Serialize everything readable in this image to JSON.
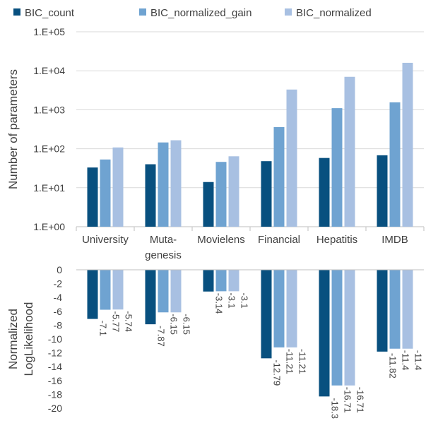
{
  "legend": [
    {
      "label": "BIC_count",
      "color": "#08507f"
    },
    {
      "label": "BIC_normalized_gain",
      "color": "#6fa3d1"
    },
    {
      "label": "BIC_normalized",
      "color": "#a8c0e2"
    }
  ],
  "chart_data": [
    {
      "type": "bar",
      "ylabel": "Number of parameters",
      "yscale": "log",
      "ylim": [
        1,
        100000
      ],
      "yticks": [
        "1.E+00",
        "1.E+01",
        "1.E+02",
        "1.E+03",
        "1.E+04",
        "1.E+05"
      ],
      "categories": [
        "University",
        "Muta-\ngenesis",
        "Movielens",
        "Financial",
        "Hepatitis",
        "IMDB"
      ],
      "grid": true,
      "legend_position": "top",
      "series": [
        {
          "name": "BIC_count",
          "values": [
            33,
            40,
            14,
            48,
            58,
            68
          ]
        },
        {
          "name": "BIC_normalized_gain",
          "values": [
            53,
            145,
            46,
            360,
            1100,
            1550
          ]
        },
        {
          "name": "BIC_normalized",
          "values": [
            108,
            165,
            64,
            3300,
            7000,
            16000
          ]
        }
      ]
    },
    {
      "type": "bar",
      "ylabel": "Normalized LogLikelihood",
      "ylim": [
        -20,
        0
      ],
      "yticks": [
        "0",
        "-2",
        "-4",
        "-6",
        "-8",
        "-10",
        "-12",
        "-14",
        "-16",
        "-18",
        "-20"
      ],
      "categories": [
        "University",
        "Muta-\ngenesis",
        "Movielens",
        "Financial",
        "Hepatitis",
        "IMDB"
      ],
      "grid": false,
      "series": [
        {
          "name": "BIC_count",
          "values": [
            -7.1,
            -7.87,
            -3.14,
            -12.79,
            -18.3,
            -11.82
          ],
          "labels": [
            "-7.1",
            "-7.87",
            "-3.14",
            "-12.79",
            "-18.3",
            "-11.82"
          ]
        },
        {
          "name": "BIC_normalized_gain",
          "values": [
            -5.77,
            -6.15,
            -3.1,
            -11.21,
            -16.71,
            -11.4
          ],
          "labels": [
            "-5.77",
            "-6.15",
            "-3.1",
            "-11.21",
            "-16.71",
            "-11.4"
          ]
        },
        {
          "name": "BIC_normalized",
          "values": [
            -5.74,
            -6.15,
            -3.1,
            -11.21,
            -16.71,
            -11.4
          ],
          "labels": [
            "-5.74",
            "-6.15",
            "-3.1",
            "-11.21",
            "-16.71",
            "-11.4"
          ]
        }
      ]
    }
  ]
}
